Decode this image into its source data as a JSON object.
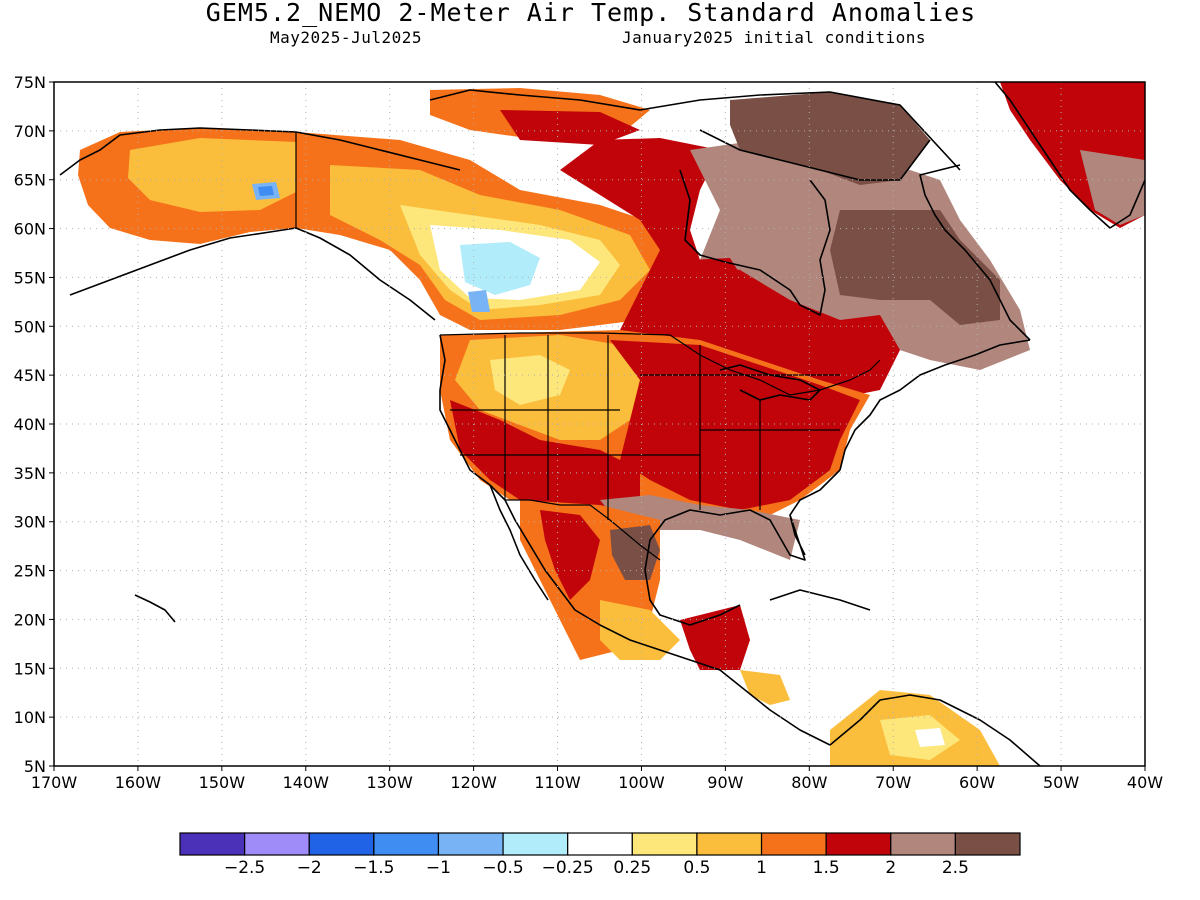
{
  "header": {
    "title": "GEM5.2_NEMO 2-Meter Air Temp. Standard Anomalies",
    "period": "May2025-Jul2025",
    "init": "January2025 initial conditions"
  },
  "axes": {
    "lat_labels": [
      "75N",
      "70N",
      "65N",
      "60N",
      "55N",
      "50N",
      "45N",
      "40N",
      "35N",
      "30N",
      "25N",
      "20N",
      "15N",
      "10N",
      "5N"
    ],
    "lon_labels": [
      "170W",
      "160W",
      "150W",
      "140W",
      "130W",
      "120W",
      "110W",
      "100W",
      "90W",
      "80W",
      "70W",
      "60W",
      "50W",
      "40W"
    ]
  },
  "colorbar": {
    "colors": [
      "#4b30b8",
      "#a08cf8",
      "#2063e6",
      "#3f8cf2",
      "#78b4f5",
      "#b0ecfa",
      "#ffffff",
      "#fde67a",
      "#fbbd3c",
      "#f6721a",
      "#c0040a",
      "#b1877d",
      "#7a4f46"
    ],
    "labels": [
      "−2.5",
      "−2",
      "−1.5",
      "−1",
      "−0.5",
      "−0.25",
      "0.25",
      "0.5",
      "1",
      "1.5",
      "2",
      "2.5"
    ]
  }
}
